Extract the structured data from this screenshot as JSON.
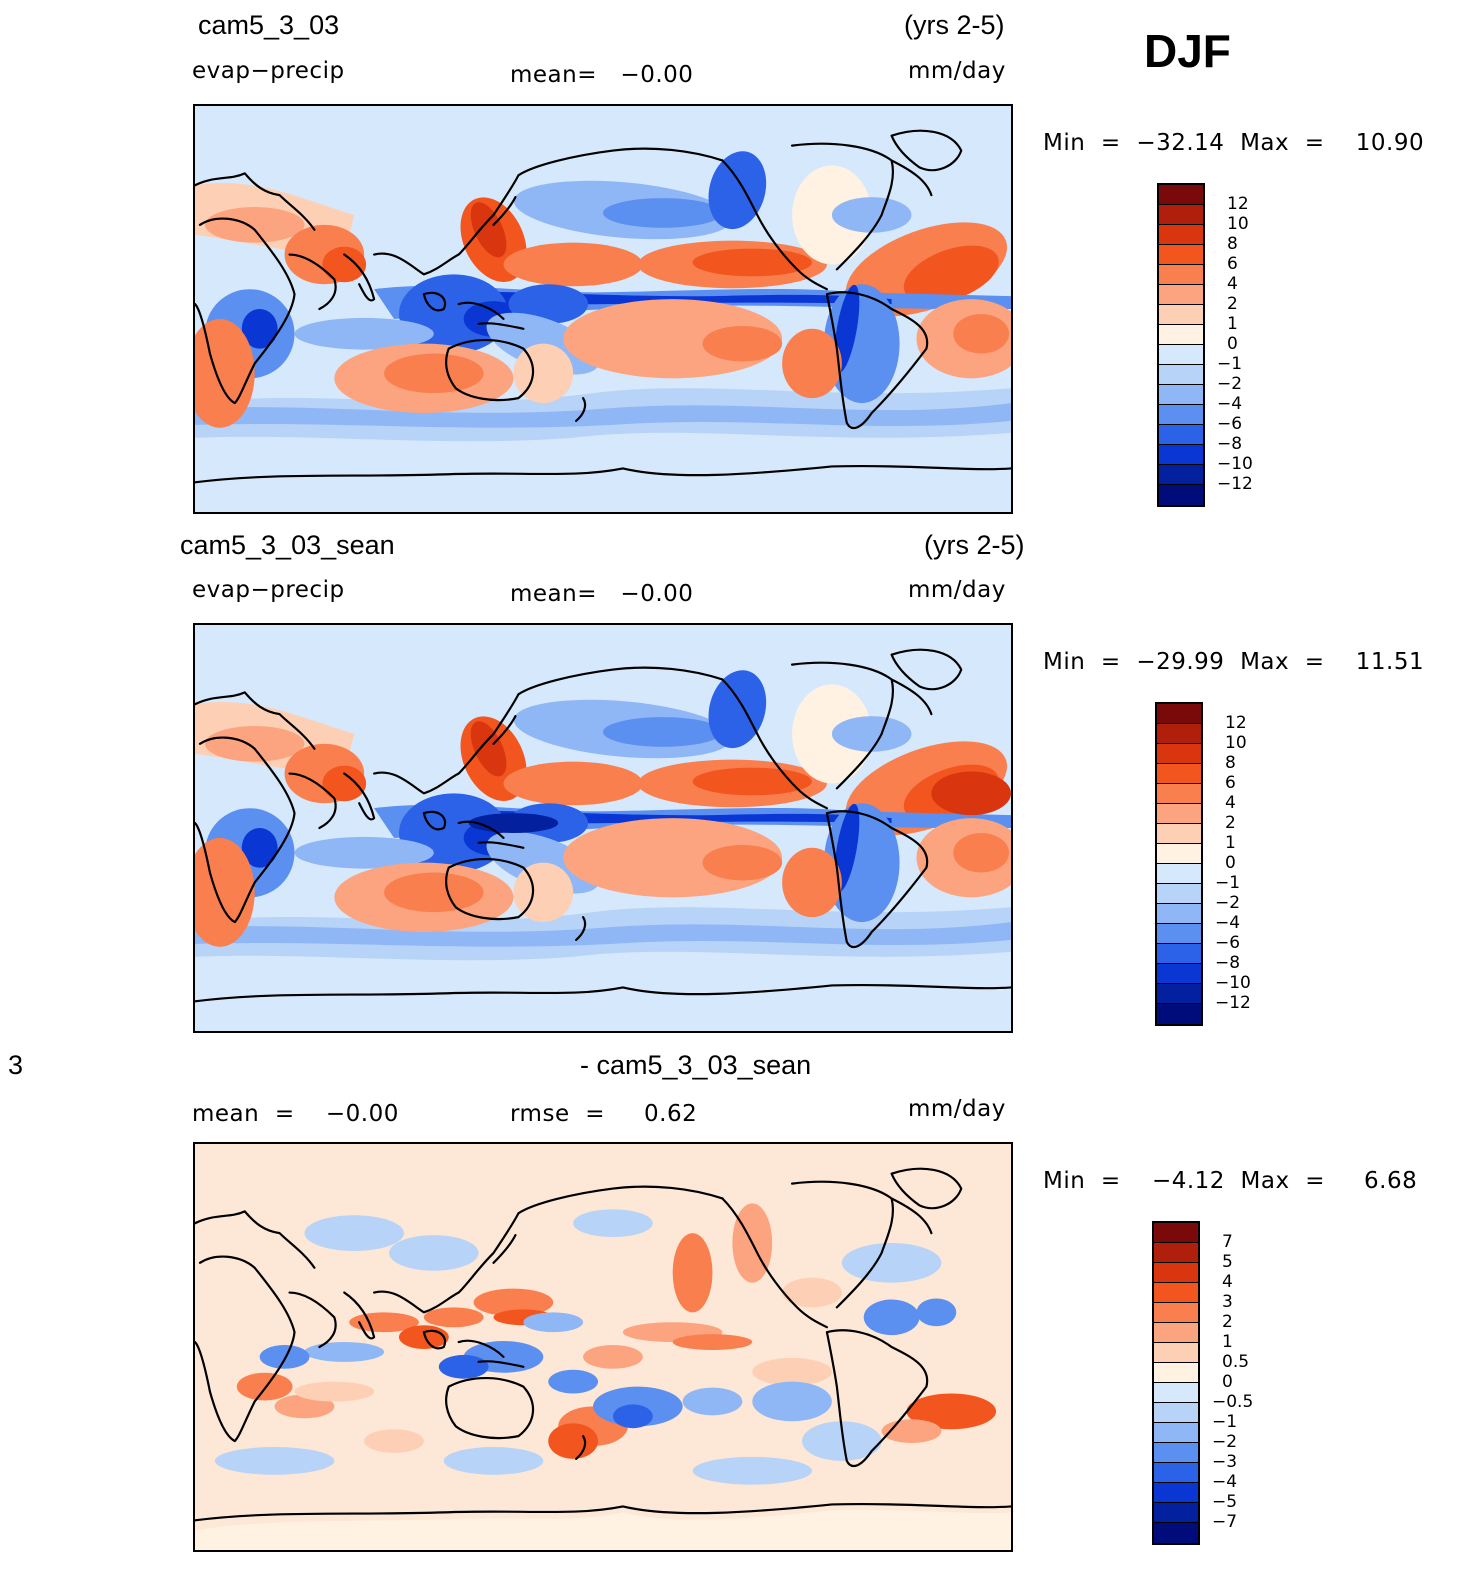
{
  "season": "DJF",
  "panels": [
    {
      "case_name": "cam5_3_03",
      "years": "(yrs 2-5)",
      "variable": "evap−precip",
      "stat": "mean=   −0.00",
      "units": "mm/day",
      "min_max": "Min  =  −32.14  Max  =    10.90",
      "levels": [
        "12",
        "10",
        "8",
        "6",
        "4",
        "2",
        "1",
        "0",
        "−1",
        "−2",
        "−4",
        "−6",
        "−8",
        "−10",
        "−12"
      ]
    },
    {
      "case_name": "cam5_3_03_sean",
      "years": "(yrs 2-5)",
      "variable": "evap−precip",
      "stat": "mean=   −0.00",
      "units": "mm/day",
      "min_max": "Min  =  −29.99  Max  =    11.51",
      "levels": [
        "12",
        "10",
        "8",
        "6",
        "4",
        "2",
        "1",
        "0",
        "−1",
        "−2",
        "−4",
        "−6",
        "−8",
        "−10",
        "−12"
      ]
    },
    {
      "diff_left": "3",
      "diff_title": "- cam5_3_03_sean",
      "stat": "mean  =    −0.00",
      "rmse": "rmse  =     0.62",
      "units": "mm/day",
      "min_max": "Min  =    −4.12  Max  =     6.68",
      "levels": [
        "7",
        "5",
        "4",
        "3",
        "2",
        "1",
        "0.5",
        "0",
        "−0.5",
        "−1",
        "−2",
        "−3",
        "−4",
        "−5",
        "−7"
      ]
    }
  ],
  "colors": {
    "palette": [
      "#7a0a0a",
      "#b01f0c",
      "#d9360f",
      "#f2561e",
      "#f97f4f",
      "#fba47f",
      "#fdd0b5",
      "#fff2e2",
      "#d6e8fb",
      "#b7d3f7",
      "#8fb6f5",
      "#5b8ff0",
      "#2c62e8",
      "#0a36d4",
      "#03209e",
      "#000c7a"
    ],
    "ocean_background": "#d6e8fb"
  }
}
